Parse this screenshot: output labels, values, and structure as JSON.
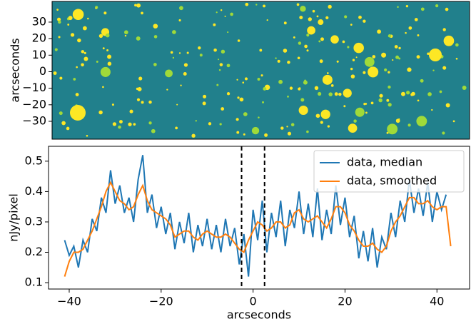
{
  "chart_data": [
    {
      "type": "image",
      "ylabel": "arcseconds",
      "ylim": [
        -40.8,
        42.5
      ],
      "yticks": [
        {
          "value": -30,
          "label": "−30"
        },
        {
          "value": -20,
          "label": "−20"
        },
        {
          "value": -10,
          "label": "−10"
        },
        0,
        10,
        20,
        30
      ]
    },
    {
      "type": "line",
      "xlabel": "arcseconds",
      "ylabel": "nJy/pixel",
      "xlim": [
        -44.5,
        47.1
      ],
      "ylim": [
        0.079,
        0.549
      ],
      "xticks": [
        {
          "value": -40,
          "label": "−40"
        },
        {
          "value": -20,
          "label": "−20"
        },
        0,
        20,
        40
      ],
      "yticks": [
        0.1,
        0.2,
        0.3,
        0.4,
        0.5
      ],
      "vlines": [
        -2.5,
        2.5
      ],
      "legend": "upper right",
      "x": [
        -41,
        -40,
        -39,
        -38,
        -37,
        -36,
        -35,
        -34,
        -33,
        -32,
        -31,
        -30,
        -29,
        -28,
        -27,
        -26,
        -25,
        -24,
        -23,
        -22,
        -21,
        -20,
        -19,
        -18,
        -17,
        -16,
        -15,
        -14,
        -13,
        -12,
        -11,
        -10,
        -9,
        -8,
        -7,
        -6,
        -5,
        -4,
        -3,
        -2,
        -1,
        0,
        1,
        2,
        3,
        4,
        5,
        6,
        7,
        8,
        9,
        10,
        11,
        12,
        13,
        14,
        15,
        16,
        17,
        18,
        19,
        20,
        21,
        22,
        23,
        24,
        25,
        26,
        27,
        28,
        29,
        30,
        31,
        32,
        33,
        34,
        35,
        36,
        37,
        38,
        39,
        40,
        41,
        42,
        43
      ],
      "series": [
        {
          "name": "data, median",
          "color": "#1f77b4",
          "values": [
            0.24,
            0.19,
            0.22,
            0.15,
            0.24,
            0.2,
            0.31,
            0.27,
            0.38,
            0.33,
            0.47,
            0.36,
            0.42,
            0.33,
            0.38,
            0.3,
            0.44,
            0.52,
            0.33,
            0.39,
            0.28,
            0.35,
            0.26,
            0.33,
            0.21,
            0.3,
            0.23,
            0.33,
            0.2,
            0.29,
            0.22,
            0.31,
            0.21,
            0.29,
            0.2,
            0.31,
            0.22,
            0.28,
            0.16,
            0.26,
            0.12,
            0.34,
            0.24,
            0.37,
            0.2,
            0.33,
            0.25,
            0.37,
            0.22,
            0.34,
            0.28,
            0.4,
            0.26,
            0.36,
            0.25,
            0.41,
            0.24,
            0.34,
            0.26,
            0.42,
            0.29,
            0.38,
            0.25,
            0.32,
            0.18,
            0.27,
            0.17,
            0.28,
            0.15,
            0.25,
            0.21,
            0.33,
            0.25,
            0.37,
            0.3,
            0.44,
            0.33,
            0.41,
            0.32,
            0.43,
            0.3,
            0.4,
            0.34,
            0.39,
            null
          ]
        },
        {
          "name": "data, smoothed",
          "color": "#ff7f0e",
          "values": [
            0.12,
            0.17,
            0.2,
            0.2,
            0.21,
            0.24,
            0.27,
            0.31,
            0.35,
            0.4,
            0.43,
            0.4,
            0.37,
            0.36,
            0.34,
            0.35,
            0.39,
            0.42,
            0.37,
            0.34,
            0.33,
            0.32,
            0.31,
            0.29,
            0.25,
            0.26,
            0.27,
            0.27,
            0.25,
            0.24,
            0.26,
            0.27,
            0.26,
            0.25,
            0.25,
            0.26,
            0.25,
            0.23,
            0.21,
            0.2,
            0.24,
            0.27,
            0.3,
            0.29,
            0.27,
            0.28,
            0.3,
            0.3,
            0.28,
            0.29,
            0.33,
            0.34,
            0.31,
            0.3,
            0.31,
            0.32,
            0.3,
            0.28,
            0.31,
            0.35,
            0.35,
            0.33,
            0.29,
            0.27,
            0.24,
            0.22,
            0.22,
            0.23,
            0.21,
            0.2,
            0.22,
            0.27,
            0.3,
            0.32,
            0.35,
            0.38,
            0.38,
            0.36,
            0.36,
            0.37,
            0.35,
            0.34,
            0.35,
            0.35,
            0.22
          ]
        }
      ]
    }
  ]
}
